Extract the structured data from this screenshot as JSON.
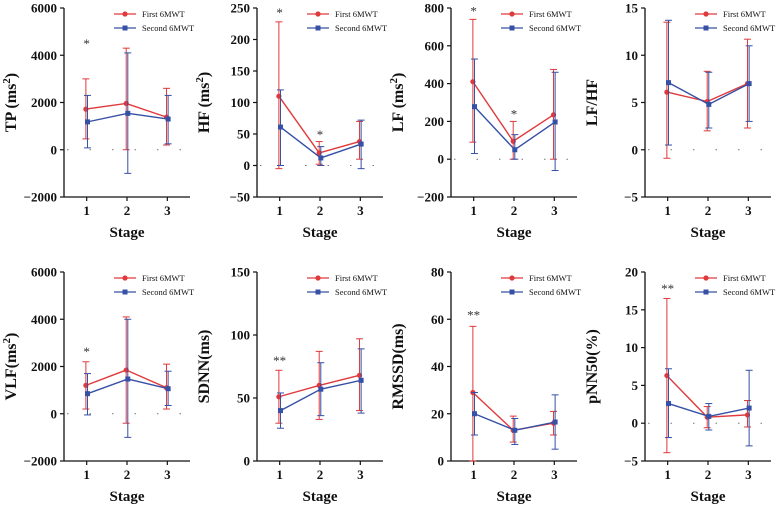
{
  "colors": {
    "first": "#e0393b",
    "second": "#3550a5",
    "axis": "#111111"
  },
  "legend": {
    "first": "First 6MWT",
    "second": "Second 6MWT"
  },
  "chart_data": [
    {
      "type": "line",
      "ylabel": "TP (ms²)",
      "ylabel_base": "TP (ms",
      "ylabel_sup": "2",
      "ylabel_tail": ")",
      "xlabel": "Stage",
      "categories": [
        "1",
        "2",
        "3"
      ],
      "ylim": [
        -2000,
        6000
      ],
      "yticks": [
        -2000,
        0,
        2000,
        4000,
        6000
      ],
      "ytick_labels": [
        "−2000",
        "0",
        "2000",
        "4000",
        "6000"
      ],
      "series": [
        {
          "name": "First 6MWT",
          "values": [
            1720,
            1960,
            1380
          ],
          "err_low": [
            460,
            0,
            200
          ],
          "err_high": [
            3000,
            4300,
            2600
          ]
        },
        {
          "name": "Second 6MWT",
          "values": [
            1180,
            1540,
            1300
          ],
          "err_low": [
            80,
            -1000,
            250
          ],
          "err_high": [
            2300,
            4100,
            2300
          ]
        }
      ],
      "annotations": [
        {
          "stage": 1,
          "value": 4300,
          "text": "*"
        }
      ]
    },
    {
      "type": "line",
      "ylabel": "HF (ms²)",
      "ylabel_base": "HF (ms",
      "ylabel_sup": "2",
      "ylabel_tail": ")",
      "xlabel": "Stage",
      "categories": [
        "1",
        "2",
        "3"
      ],
      "ylim": [
        -50,
        250
      ],
      "yticks": [
        -50,
        0,
        50,
        100,
        150,
        200,
        250
      ],
      "ytick_labels": [
        "−50",
        "0",
        "50",
        "100",
        "150",
        "200",
        "250"
      ],
      "series": [
        {
          "name": "First 6MWT",
          "values": [
            110,
            20,
            38
          ],
          "err_low": [
            -5,
            2,
            10
          ],
          "err_high": [
            228,
            38,
            70
          ]
        },
        {
          "name": "Second 6MWT",
          "values": [
            61,
            12,
            34
          ],
          "err_low": [
            0,
            0,
            -5
          ],
          "err_high": [
            120,
            30,
            72
          ]
        }
      ],
      "annotations": [
        {
          "stage": 1,
          "value": 236,
          "text": "*"
        },
        {
          "stage": 2,
          "value": 42,
          "text": "*"
        }
      ]
    },
    {
      "type": "line",
      "ylabel": "LF (ms²)",
      "ylabel_base": "LF (ms",
      "ylabel_sup": "2",
      "ylabel_tail": ")",
      "xlabel": "Stage",
      "categories": [
        "1",
        "2",
        "3"
      ],
      "ylim": [
        -200,
        800
      ],
      "yticks": [
        -200,
        0,
        200,
        400,
        600,
        800
      ],
      "ytick_labels": [
        "−200",
        "0",
        "200",
        "400",
        "600",
        "800"
      ],
      "series": [
        {
          "name": "First 6MWT",
          "values": [
            410,
            95,
            235
          ],
          "err_low": [
            90,
            0,
            0
          ],
          "err_high": [
            740,
            200,
            475
          ]
        },
        {
          "name": "Second 6MWT",
          "values": [
            278,
            50,
            197
          ],
          "err_low": [
            30,
            0,
            -60
          ],
          "err_high": [
            530,
            130,
            460
          ]
        }
      ],
      "annotations": [
        {
          "stage": 1,
          "value": 760,
          "text": "*"
        },
        {
          "stage": 2,
          "value": 215,
          "text": "*"
        }
      ]
    },
    {
      "type": "line",
      "ylabel": "LF/HF",
      "ylabel_base": "LF/HF",
      "ylabel_sup": "",
      "ylabel_tail": "",
      "xlabel": "Stage",
      "categories": [
        "1",
        "2",
        "3"
      ],
      "ylim": [
        -5,
        15
      ],
      "yticks": [
        -5,
        0,
        5,
        10,
        15
      ],
      "ytick_labels": [
        "−5",
        "0",
        "5",
        "10",
        "15"
      ],
      "series": [
        {
          "name": "First 6MWT",
          "values": [
            6.1,
            5.1,
            7.0
          ],
          "err_low": [
            -0.9,
            2.0,
            2.3
          ],
          "err_high": [
            13.5,
            8.3,
            11.7
          ]
        },
        {
          "name": "Second 6MWT",
          "values": [
            7.1,
            4.8,
            7.0
          ],
          "err_low": [
            0.5,
            2.3,
            3.0
          ],
          "err_high": [
            13.7,
            8.2,
            11.0
          ]
        }
      ],
      "annotations": []
    },
    {
      "type": "line",
      "ylabel": "VLF(ms²)",
      "ylabel_base": "VLF(ms",
      "ylabel_sup": "2",
      "ylabel_tail": ")",
      "xlabel": "Stage",
      "categories": [
        "1",
        "2",
        "3"
      ],
      "ylim": [
        -2000,
        6000
      ],
      "yticks": [
        -2000,
        0,
        2000,
        4000,
        6000
      ],
      "ytick_labels": [
        "−2000",
        "0",
        "2000",
        "4000",
        "6000"
      ],
      "series": [
        {
          "name": "First 6MWT",
          "values": [
            1200,
            1850,
            1100
          ],
          "err_low": [
            200,
            -400,
            200
          ],
          "err_high": [
            2200,
            4100,
            2100
          ]
        },
        {
          "name": "Second 6MWT",
          "values": [
            850,
            1470,
            1060
          ],
          "err_low": [
            -50,
            -1000,
            350
          ],
          "err_high": [
            1700,
            4000,
            1800
          ]
        }
      ],
      "annotations": [
        {
          "stage": 1,
          "value": 2450,
          "text": "*"
        }
      ]
    },
    {
      "type": "line",
      "ylabel": "SDNN(ms)",
      "ylabel_base": "SDNN(ms)",
      "ylabel_sup": "",
      "ylabel_tail": "",
      "xlabel": "Stage",
      "categories": [
        "1",
        "2",
        "3"
      ],
      "ylim": [
        0,
        150
      ],
      "yticks": [
        0,
        50,
        100,
        150
      ],
      "ytick_labels": [
        "0",
        "50",
        "100",
        "150"
      ],
      "series": [
        {
          "name": "First 6MWT",
          "values": [
            51,
            60,
            68
          ],
          "err_low": [
            30,
            33,
            40
          ],
          "err_high": [
            72,
            87,
            97
          ]
        },
        {
          "name": "Second 6MWT",
          "values": [
            40,
            57,
            64
          ],
          "err_low": [
            26,
            36,
            38
          ],
          "err_high": [
            54,
            78,
            89
          ]
        }
      ],
      "annotations": [
        {
          "stage": 1,
          "value": 76,
          "text": "**"
        }
      ]
    },
    {
      "type": "line",
      "ylabel": "RMSSD(ms)",
      "ylabel_base": "RMSSD(ms)",
      "ylabel_sup": "",
      "ylabel_tail": "",
      "xlabel": "Stage",
      "categories": [
        "1",
        "2",
        "3"
      ],
      "ylim": [
        0,
        80
      ],
      "yticks": [
        0,
        20,
        40,
        60,
        80
      ],
      "ytick_labels": [
        "0",
        "20",
        "40",
        "60",
        "80"
      ],
      "series": [
        {
          "name": "First 6MWT",
          "values": [
            29,
            13,
            16
          ],
          "err_low": [
            0,
            8,
            11
          ],
          "err_high": [
            57,
            19,
            21
          ]
        },
        {
          "name": "Second 6MWT",
          "values": [
            20,
            13,
            16.5
          ],
          "err_low": [
            11,
            7,
            5
          ],
          "err_high": [
            29,
            18,
            28
          ]
        }
      ],
      "annotations": [
        {
          "stage": 1,
          "value": 60,
          "text": "**"
        }
      ]
    },
    {
      "type": "line",
      "ylabel": "pNN50(%)",
      "ylabel_base": "pNN50(%)",
      "ylabel_sup": "",
      "ylabel_tail": "",
      "xlabel": "Stage",
      "categories": [
        "1",
        "2",
        "3"
      ],
      "ylim": [
        -5,
        20
      ],
      "yticks": [
        -5,
        0,
        5,
        10,
        15,
        20
      ],
      "ytick_labels": [
        "−5",
        "0",
        "5",
        "10",
        "15",
        "20"
      ],
      "series": [
        {
          "name": "First 6MWT",
          "values": [
            6.3,
            0.8,
            1.1
          ],
          "err_low": [
            -3.9,
            -0.6,
            -0.5
          ],
          "err_high": [
            16.5,
            2.2,
            3.0
          ]
        },
        {
          "name": "Second 6MWT",
          "values": [
            2.6,
            0.9,
            2.0
          ],
          "err_low": [
            -1.9,
            -0.9,
            -3.0
          ],
          "err_high": [
            7.2,
            2.6,
            7.0
          ]
        }
      ],
      "annotations": [
        {
          "stage": 1,
          "value": 17.2,
          "text": "**"
        }
      ]
    }
  ]
}
